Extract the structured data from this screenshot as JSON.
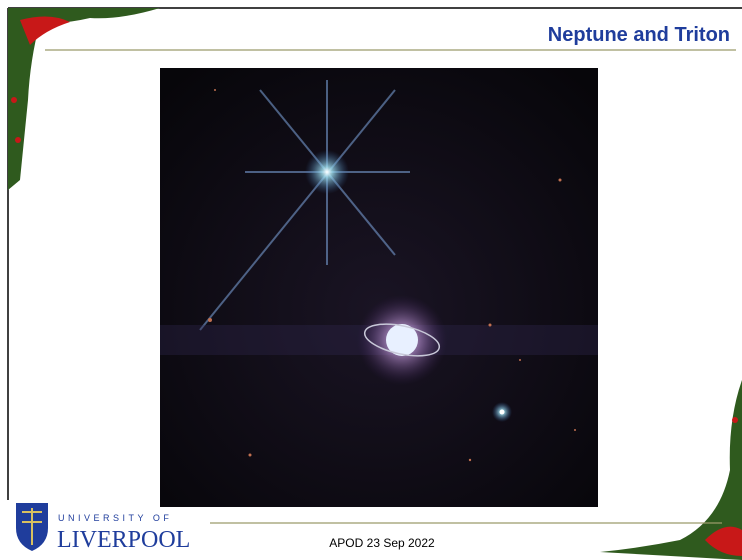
{
  "slide": {
    "title": "Neptune and Triton",
    "footer": "APOD 23 Sep 2022",
    "logo": {
      "line1": "UNIVERSITY OF",
      "line2": "LIVERPOOL"
    }
  }
}
